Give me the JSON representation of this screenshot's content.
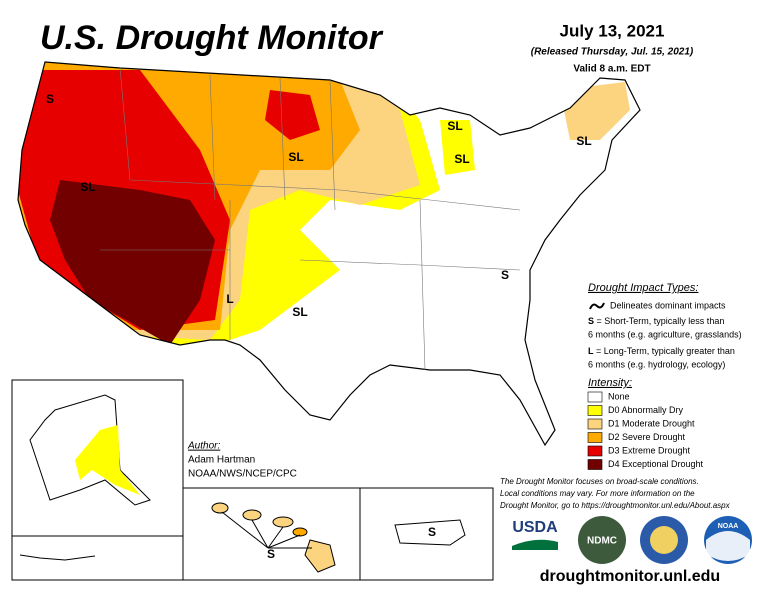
{
  "header": {
    "title": "U.S. Drought Monitor",
    "date": "July 13, 2021",
    "released": "(Released Thursday, Jul. 15, 2021)",
    "valid": "Valid 8 a.m. EDT"
  },
  "map": {
    "labels": [
      "S",
      "SL",
      "L",
      "SL",
      "SL",
      "SL",
      "SL",
      "SL",
      "S"
    ],
    "hawaii_label": "S",
    "puerto_rico_label": "S"
  },
  "impact_legend": {
    "title": "Drought Impact Types:",
    "line_note": "Delineates dominant impacts",
    "short_term": {
      "key": "S",
      "text": [
        "= Short-Term, typically less than",
        "6 months (e.g. agriculture, grasslands)"
      ]
    },
    "long_term": {
      "key": "L",
      "text": [
        "= Long-Term, typically greater than",
        "6 months (e.g. hydrology, ecology)"
      ]
    }
  },
  "intensity_legend": {
    "title": "Intensity:",
    "items": [
      {
        "label": "None",
        "color": "#ffffff"
      },
      {
        "label": "D0 Abnormally Dry",
        "color": "#ffff00"
      },
      {
        "label": "D1 Moderate Drought",
        "color": "#fcd37f"
      },
      {
        "label": "D2 Severe Drought",
        "color": "#ffaa00"
      },
      {
        "label": "D3 Extreme Drought",
        "color": "#e60000"
      },
      {
        "label": "D4 Exceptional Drought",
        "color": "#730000"
      }
    ]
  },
  "author": {
    "heading": "Author:",
    "name": "Adam Hartman",
    "org": "NOAA/NWS/NCEP/CPC"
  },
  "disclaimer": [
    "The Drought Monitor focuses on broad-scale conditions.",
    "Local conditions may vary. For more information on the",
    "Drought Monitor, go to https://droughtmonitor.unl.edu/About.aspx"
  ],
  "logos": [
    "USDA",
    "NDMC",
    "NOAA"
  ],
  "url": "droughtmonitor.unl.edu"
}
